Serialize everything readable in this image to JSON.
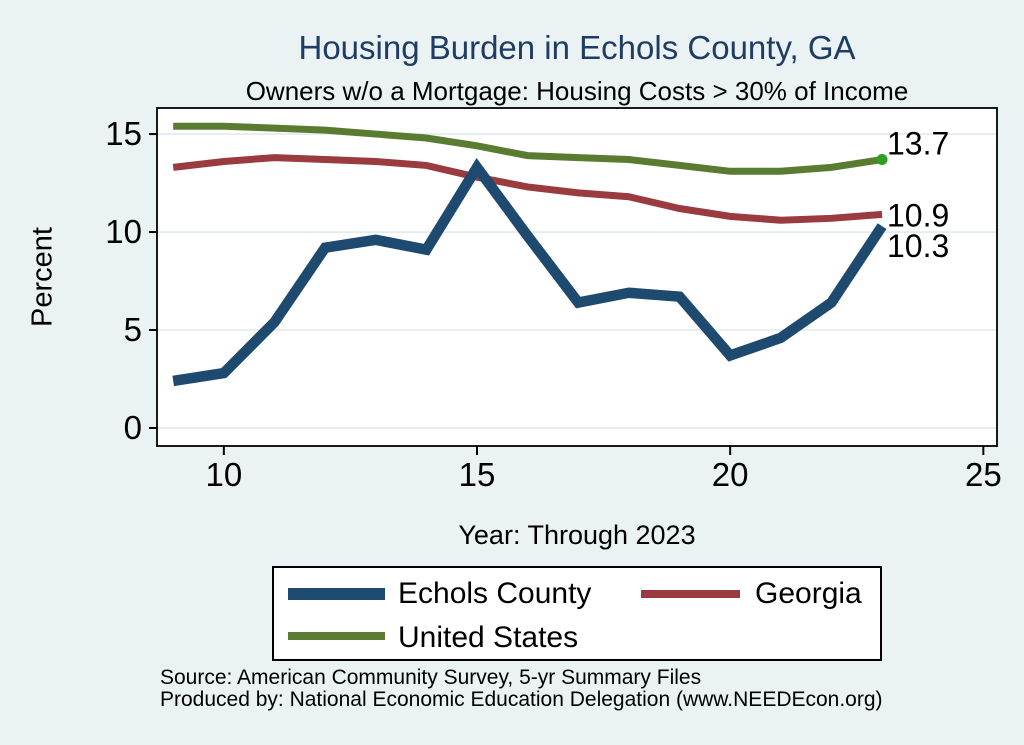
{
  "chart_data": {
    "type": "line",
    "title": "Housing Burden in Echols County, GA",
    "subtitle": "Owners w/o a Mortgage: Housing Costs > 30% of Income",
    "xlabel": "Year: Through 2023",
    "ylabel": "Percent",
    "x": [
      9,
      10,
      11,
      12,
      13,
      14,
      15,
      16,
      17,
      18,
      19,
      20,
      21,
      22,
      23
    ],
    "xticks": [
      10,
      15,
      20,
      25
    ],
    "yticks": [
      0,
      5,
      10,
      15
    ],
    "xlim": [
      8.68,
      25.27
    ],
    "ylim": [
      -0.92,
      16.33
    ],
    "grid": "horizontal",
    "legend_position": "bottom",
    "series": [
      {
        "name": "Echols County",
        "color": "#1f4a70",
        "line_width": 10.5,
        "values": [
          2.4,
          2.8,
          5.4,
          9.2,
          9.6,
          9.1,
          13.3,
          9.8,
          6.4,
          6.9,
          6.7,
          3.7,
          4.6,
          6.4,
          10.3
        ],
        "end_label": "10.3"
      },
      {
        "name": "Georgia",
        "color": "#9a3b40",
        "line_width": 7,
        "values": [
          13.3,
          13.6,
          13.8,
          13.7,
          13.6,
          13.4,
          12.8,
          12.3,
          12.0,
          11.8,
          11.2,
          10.8,
          10.6,
          10.7,
          10.9
        ],
        "end_label": "10.9"
      },
      {
        "name": "United States",
        "color": "#5a7c31",
        "line_width": 7,
        "values": [
          15.4,
          15.4,
          15.3,
          15.2,
          15.0,
          14.8,
          14.4,
          13.9,
          13.8,
          13.7,
          13.4,
          13.1,
          13.1,
          13.3,
          13.7
        ],
        "end_label": "13.7",
        "end_marker": true,
        "end_marker_color": "#2f9e23"
      }
    ]
  },
  "source": {
    "line1": "Source: American Community Survey, 5-yr Summary Files",
    "line2": "Produced by: National Economic Education Delegation (www.NEEDEcon.org)"
  },
  "colors": {
    "background": "#eaf2f3",
    "plot_background": "#ffffff",
    "gridline": "#dfeaec",
    "axis": "#000000",
    "title": "#1f3c63",
    "tick_label": "#000000",
    "end_label": "#000000"
  }
}
